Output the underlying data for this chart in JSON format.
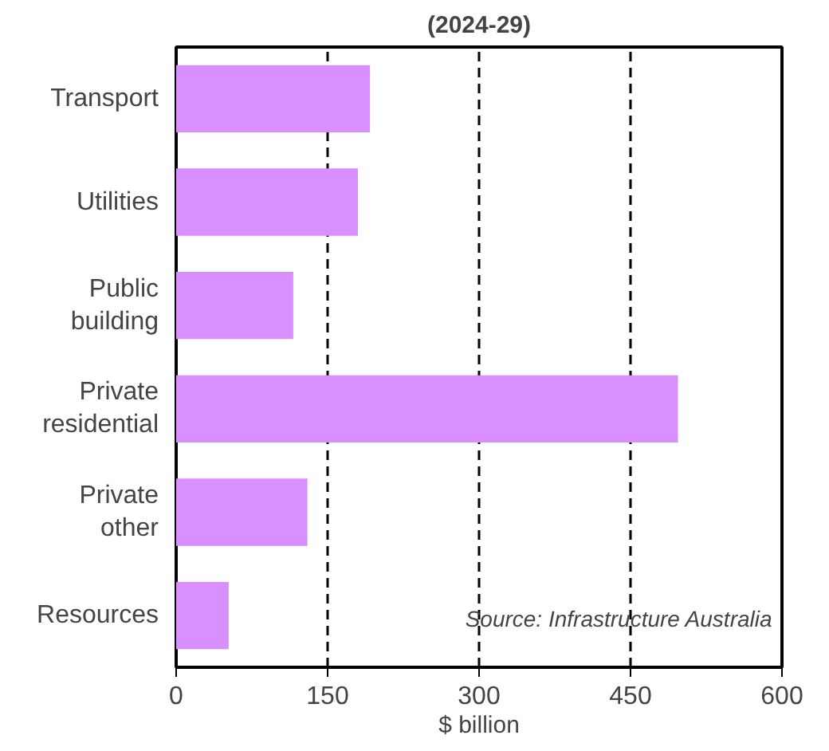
{
  "chart_data": {
    "type": "bar",
    "orientation": "horizontal",
    "title": "(2024-29)",
    "xlabel": "$ billion",
    "categories": [
      "Transport",
      "Utilities",
      "Public\nbuilding",
      "Private\nresidential",
      "Private\nother",
      "Resources"
    ],
    "values": [
      192,
      180,
      116,
      497,
      130,
      52
    ],
    "color": "#da8fff",
    "xlim": [
      0,
      600
    ],
    "xticks": [
      0,
      150,
      300,
      450,
      600
    ],
    "grid": "x",
    "annotations": [
      "Source: Infrastructure Australia"
    ]
  }
}
